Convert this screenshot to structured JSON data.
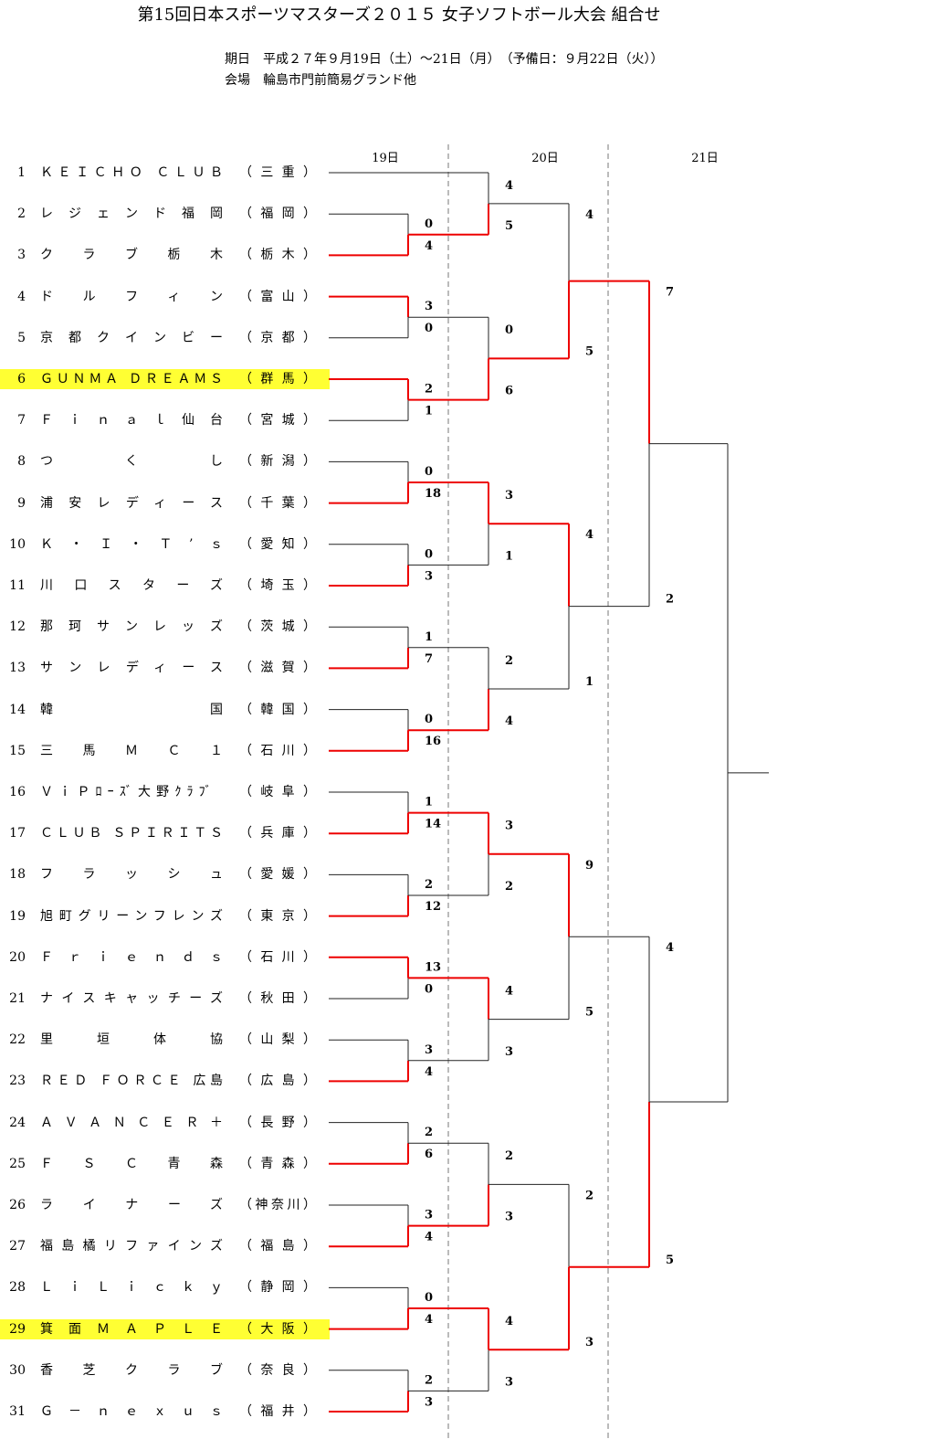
{
  "header": {
    "title": "第15回日本スポーツマスターズ２０１５ 女子ソフトボール大会 組合せ",
    "dates": "期日　平成２７年９月19日（土）〜21日（月）　（予備日：９月22日（火））",
    "venue": "会場　輪島市門前簡易グランド他"
  },
  "days": [
    "19日",
    "20日",
    "21日"
  ],
  "colors": {
    "winner_line": "#ee0000",
    "loser_line": "#222222",
    "highlight": "#ffff33",
    "divider": "#777777"
  },
  "teams": [
    {
      "num": "1",
      "name": "ＫＥＩＣＨＯ ＣＬＵＢ",
      "pref": "（三重）"
    },
    {
      "num": "2",
      "name": "レジェンド福岡",
      "pref": "（福岡）"
    },
    {
      "num": "3",
      "name": "クラブ栃木",
      "pref": "（栃木）"
    },
    {
      "num": "4",
      "name": "ドルフィン",
      "pref": "（富山）"
    },
    {
      "num": "5",
      "name": "京都クインビー",
      "pref": "（京都）"
    },
    {
      "num": "6",
      "name": "ＧＵＮＭＡ ＤＲＥＡＭＳ",
      "pref": "（群馬）",
      "highlight": true
    },
    {
      "num": "7",
      "name": "Ｆｉｎａｌ仙台",
      "pref": "（宮城）"
    },
    {
      "num": "8",
      "name": "つ　　く　　し",
      "pref": "（新潟）"
    },
    {
      "num": "9",
      "name": "浦安レディース",
      "pref": "（千葉）"
    },
    {
      "num": "10",
      "name": "Ｋ・Ｉ・Ｔ’ｓ",
      "pref": "（愛知）"
    },
    {
      "num": "11",
      "name": "川口スターズ",
      "pref": "（埼玉）"
    },
    {
      "num": "12",
      "name": "那珂サンレッズ",
      "pref": "（茨城）"
    },
    {
      "num": "13",
      "name": "サンレディース",
      "pref": "（滋賀）"
    },
    {
      "num": "14",
      "name": "韓　　　　　国",
      "pref": "（韓国）"
    },
    {
      "num": "15",
      "name": "三馬ＭＣ１",
      "pref": "（石川）"
    },
    {
      "num": "16",
      "name": "ＶｉＰﾛｰｽﾞ大野ｸﾗﾌﾞ",
      "pref": "（岐阜）"
    },
    {
      "num": "17",
      "name": "ＣＬＵＢ ＳＰＩＲＩＴＳ",
      "pref": "（兵庫）"
    },
    {
      "num": "18",
      "name": "フラッシュ",
      "pref": "（愛媛）"
    },
    {
      "num": "19",
      "name": "旭町グリーンフレンズ",
      "pref": "（東京）"
    },
    {
      "num": "20",
      "name": "Ｆｒｉｅｎｄｓ",
      "pref": "（石川）"
    },
    {
      "num": "21",
      "name": "ナイスキャッチーズ",
      "pref": "（秋田）"
    },
    {
      "num": "22",
      "name": "里垣体協",
      "pref": "（山梨）"
    },
    {
      "num": "23",
      "name": "ＲＥＤ ＦＯＲＣＥ 広島",
      "pref": "（広島）"
    },
    {
      "num": "24",
      "name": "ＡＶＡＮＣＥＲ＋",
      "pref": "（長野）"
    },
    {
      "num": "25",
      "name": "ＦＳＣ青森",
      "pref": "（青森）"
    },
    {
      "num": "26",
      "name": "ライナーズ",
      "pref": "（神奈川）"
    },
    {
      "num": "27",
      "name": "福島橘リファインズ",
      "pref": "（福島）"
    },
    {
      "num": "28",
      "name": "ＬｉＬｉｃｋｙ",
      "pref": "（静岡）"
    },
    {
      "num": "29",
      "name": "箕面ＭＡＰＬＥ",
      "pref": "（大阪）",
      "highlight": true
    },
    {
      "num": "30",
      "name": "香芝クラブ",
      "pref": "（奈良）"
    },
    {
      "num": "31",
      "name": "Ｇ－ｎｅｘｕｓ",
      "pref": "（福井）"
    }
  ],
  "rounds": {
    "r1": [
      {
        "a": 2,
        "b": 3,
        "sa": "0",
        "sb": "4",
        "winner": "b"
      },
      {
        "a": 4,
        "b": 5,
        "sa": "3",
        "sb": "0",
        "winner": "a"
      },
      {
        "a": 6,
        "b": 7,
        "sa": "2",
        "sb": "1",
        "winner": "a"
      },
      {
        "a": 8,
        "b": 9,
        "sa": "0",
        "sb": "18",
        "winner": "b"
      },
      {
        "a": 10,
        "b": 11,
        "sa": "0",
        "sb": "3",
        "winner": "b"
      },
      {
        "a": 12,
        "b": 13,
        "sa": "1",
        "sb": "7",
        "winner": "b"
      },
      {
        "a": 14,
        "b": 15,
        "sa": "0",
        "sb": "16",
        "winner": "b"
      },
      {
        "a": 16,
        "b": 17,
        "sa": "1",
        "sb": "14",
        "winner": "b"
      },
      {
        "a": 18,
        "b": 19,
        "sa": "2",
        "sb": "12",
        "winner": "b"
      },
      {
        "a": 20,
        "b": 21,
        "sa": "13",
        "sb": "0",
        "winner": "a"
      },
      {
        "a": 22,
        "b": 23,
        "sa": "3",
        "sb": "4",
        "winner": "b"
      },
      {
        "a": 24,
        "b": 25,
        "sa": "2",
        "sb": "6",
        "winner": "b"
      },
      {
        "a": 26,
        "b": 27,
        "sa": "3",
        "sb": "4",
        "winner": "b"
      },
      {
        "a": 28,
        "b": 29,
        "sa": "0",
        "sb": "4",
        "winner": "b"
      },
      {
        "a": 30,
        "b": 31,
        "sa": "2",
        "sb": "3",
        "winner": "b"
      }
    ],
    "r2": [
      {
        "sa": "4",
        "sb": "5",
        "winner": "b"
      },
      {
        "sa": "0",
        "sb": "6",
        "winner": "b"
      },
      {
        "sa": "3",
        "sb": "1",
        "winner": "a"
      },
      {
        "sa": "2",
        "sb": "4",
        "winner": "b"
      },
      {
        "sa": "3",
        "sb": "2",
        "winner": "a"
      },
      {
        "sa": "4",
        "sb": "3",
        "winner": "a"
      },
      {
        "sa": "2",
        "sb": "3",
        "winner": "b"
      },
      {
        "sa": "4",
        "sb": "3",
        "winner": "a"
      }
    ],
    "r3": [
      {
        "sa": "4",
        "sb": "5",
        "winner": "b"
      },
      {
        "sa": "4",
        "sb": "1",
        "winner": "a"
      },
      {
        "sa": "9",
        "sb": "5",
        "winner": "a"
      },
      {
        "sa": "2",
        "sb": "3",
        "winner": "b"
      }
    ],
    "r4": [
      {
        "sa": "7",
        "sb": "2",
        "winner": "a"
      },
      {
        "sa": "4",
        "sb": "5",
        "winner": "b"
      }
    ],
    "final": {
      "winner": "b"
    }
  }
}
